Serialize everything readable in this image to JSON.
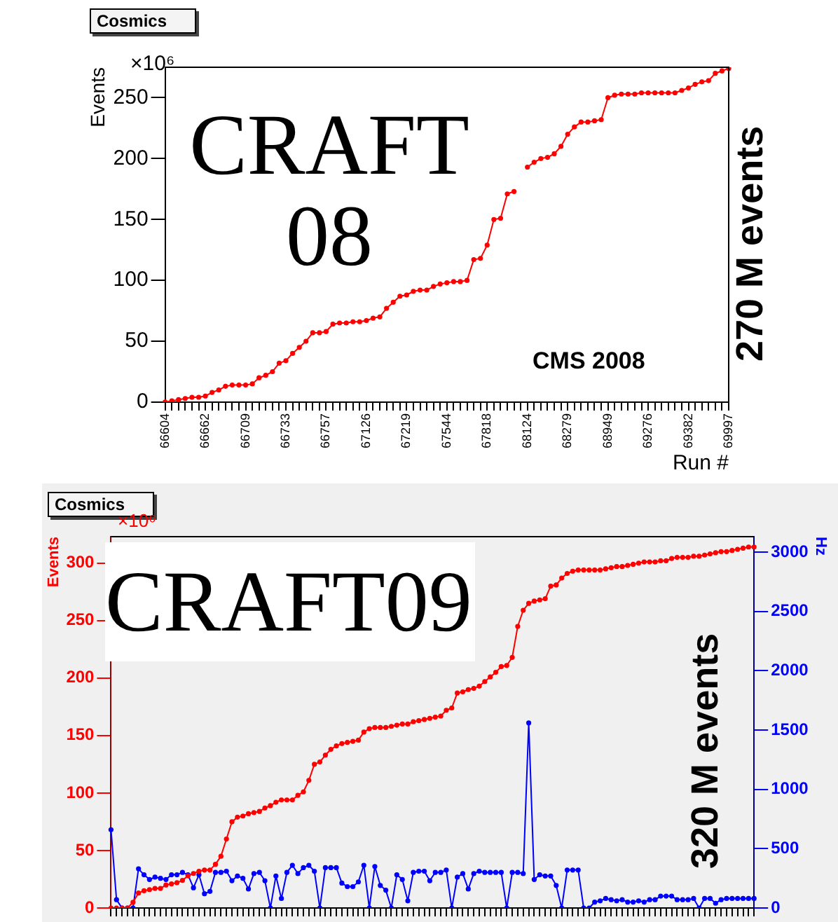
{
  "chart_data": [
    {
      "type": "line",
      "title": "Cosmics",
      "xlabel": "Run #",
      "ylabel": "Events",
      "marker": "circle",
      "line_style": "solid",
      "annotations": [
        "×10⁶",
        "CRAFT 08",
        "CMS 2008",
        "270 M events"
      ],
      "categories": [
        "66604",
        null,
        null,
        null,
        null,
        null,
        "66662",
        null,
        null,
        null,
        null,
        null,
        "66709",
        null,
        null,
        null,
        null,
        null,
        "66733",
        null,
        null,
        null,
        null,
        null,
        "66757",
        null,
        null,
        null,
        null,
        null,
        "67126",
        null,
        null,
        null,
        null,
        null,
        "67219",
        null,
        null,
        null,
        null,
        null,
        "67544",
        null,
        null,
        null,
        null,
        null,
        "67818",
        null,
        null,
        null,
        null,
        null,
        "68124",
        null,
        null,
        null,
        null,
        null,
        "68279",
        null,
        null,
        null,
        null,
        null,
        "68949",
        null,
        null,
        null,
        null,
        null,
        "69276",
        null,
        null,
        null,
        null,
        null,
        "69382",
        null,
        null,
        null,
        null,
        null,
        "69997"
      ],
      "ylim": [
        0,
        275
      ],
      "yticks": [
        0,
        50,
        100,
        150,
        200,
        250
      ],
      "series": [
        {
          "color": "#ff0000",
          "values": [
            0,
            1,
            2,
            3,
            4,
            4,
            5,
            8,
            10,
            13,
            14,
            14,
            14,
            15,
            20,
            22,
            25,
            32,
            34,
            40,
            45,
            50,
            57,
            57,
            58,
            64,
            65,
            65,
            66,
            66,
            67,
            69,
            70,
            77,
            82,
            87,
            88,
            91,
            92,
            92,
            95,
            97,
            98,
            99,
            99,
            100,
            117,
            118,
            129,
            150,
            151,
            171,
            173,
            null,
            193,
            197,
            200,
            201,
            204,
            210,
            220,
            226,
            230,
            230,
            231,
            232,
            250,
            252,
            253,
            253,
            253,
            254,
            254,
            254,
            254,
            254,
            254,
            256,
            258,
            261,
            263,
            264,
            270,
            272,
            274
          ]
        }
      ]
    },
    {
      "type": "line",
      "title": "Cosmics",
      "ylabel": "Events",
      "y2label": "Hz",
      "marker": "circle",
      "line_style": "solid",
      "annotations": [
        "×10⁶",
        "CRAFT09",
        "320 M events"
      ],
      "categories": [
        null,
        null,
        null,
        null,
        null,
        null,
        null,
        null,
        null,
        null,
        null,
        null,
        null,
        null,
        null,
        null,
        null,
        null,
        null,
        null,
        null,
        null,
        null,
        null,
        null,
        null,
        null,
        null,
        null,
        null,
        null,
        null,
        null,
        null,
        null,
        null,
        null,
        null,
        null,
        null,
        null,
        null,
        null,
        null,
        null,
        null,
        null,
        null,
        null,
        null,
        null,
        null,
        null,
        null,
        null,
        null,
        null,
        null,
        null,
        null,
        null,
        null,
        null,
        null,
        null,
        null,
        null,
        null,
        null,
        null,
        null,
        null,
        null,
        null,
        null,
        null,
        null,
        null,
        null,
        null,
        null,
        null,
        null,
        null,
        null,
        null,
        null,
        null,
        null,
        null,
        null,
        null,
        null,
        null,
        null,
        null,
        null,
        null,
        null,
        null,
        null,
        null,
        null,
        null,
        null,
        null,
        null,
        null,
        null,
        null,
        null,
        null,
        null,
        null,
        null,
        null,
        null,
        null
      ],
      "ylim": [
        0,
        323
      ],
      "yticks": [
        0,
        50,
        100,
        150,
        200,
        250,
        300
      ],
      "y2lim": [
        0,
        3130
      ],
      "y2ticks": [
        0,
        500,
        1000,
        1500,
        2000,
        2500,
        3000
      ],
      "series": [
        {
          "color": "#ff0000",
          "values": [
            0,
            0,
            0,
            0,
            5,
            13,
            15,
            16,
            17,
            17,
            20,
            21,
            22,
            24,
            28,
            30,
            32,
            33,
            33,
            38,
            45,
            60,
            75,
            79,
            80,
            82,
            83,
            84,
            87,
            89,
            92,
            94,
            94,
            94,
            98,
            101,
            111,
            125,
            127,
            133,
            138,
            141,
            143,
            144,
            145,
            146,
            153,
            156,
            157,
            157,
            157,
            158,
            159,
            160,
            160,
            162,
            163,
            164,
            165,
            166,
            167,
            172,
            174,
            187,
            188,
            190,
            191,
            193,
            197,
            201,
            205,
            210,
            211,
            218,
            245,
            259,
            265,
            267,
            268,
            269,
            280,
            281,
            287,
            291,
            293,
            294,
            294,
            294,
            294,
            294,
            295,
            296,
            297,
            297,
            298,
            299,
            300,
            301,
            301,
            301,
            302,
            302,
            304,
            305,
            305,
            305,
            306,
            306,
            307,
            308,
            309,
            310,
            310,
            311,
            312,
            313,
            314,
            314
          ]
        },
        {
          "color": "#0000ff",
          "axis": "y2",
          "values": [
            660,
            70,
            0,
            0,
            0,
            330,
            280,
            240,
            260,
            250,
            240,
            280,
            280,
            300,
            280,
            170,
            280,
            120,
            140,
            300,
            300,
            310,
            230,
            270,
            250,
            160,
            290,
            300,
            230,
            0,
            270,
            80,
            300,
            360,
            290,
            340,
            360,
            310,
            0,
            340,
            340,
            340,
            210,
            180,
            180,
            220,
            360,
            0,
            350,
            190,
            150,
            0,
            280,
            240,
            60,
            300,
            310,
            310,
            230,
            300,
            300,
            320,
            0,
            260,
            290,
            160,
            290,
            310,
            300,
            300,
            300,
            300,
            0,
            300,
            300,
            290,
            1560,
            240,
            280,
            270,
            270,
            190,
            0,
            320,
            320,
            320,
            0,
            0,
            50,
            60,
            80,
            70,
            60,
            70,
            50,
            50,
            60,
            50,
            70,
            70,
            100,
            100,
            100,
            70,
            70,
            70,
            80,
            0,
            80,
            80,
            40,
            70,
            80,
            80,
            80,
            80,
            80,
            80
          ]
        }
      ]
    }
  ]
}
